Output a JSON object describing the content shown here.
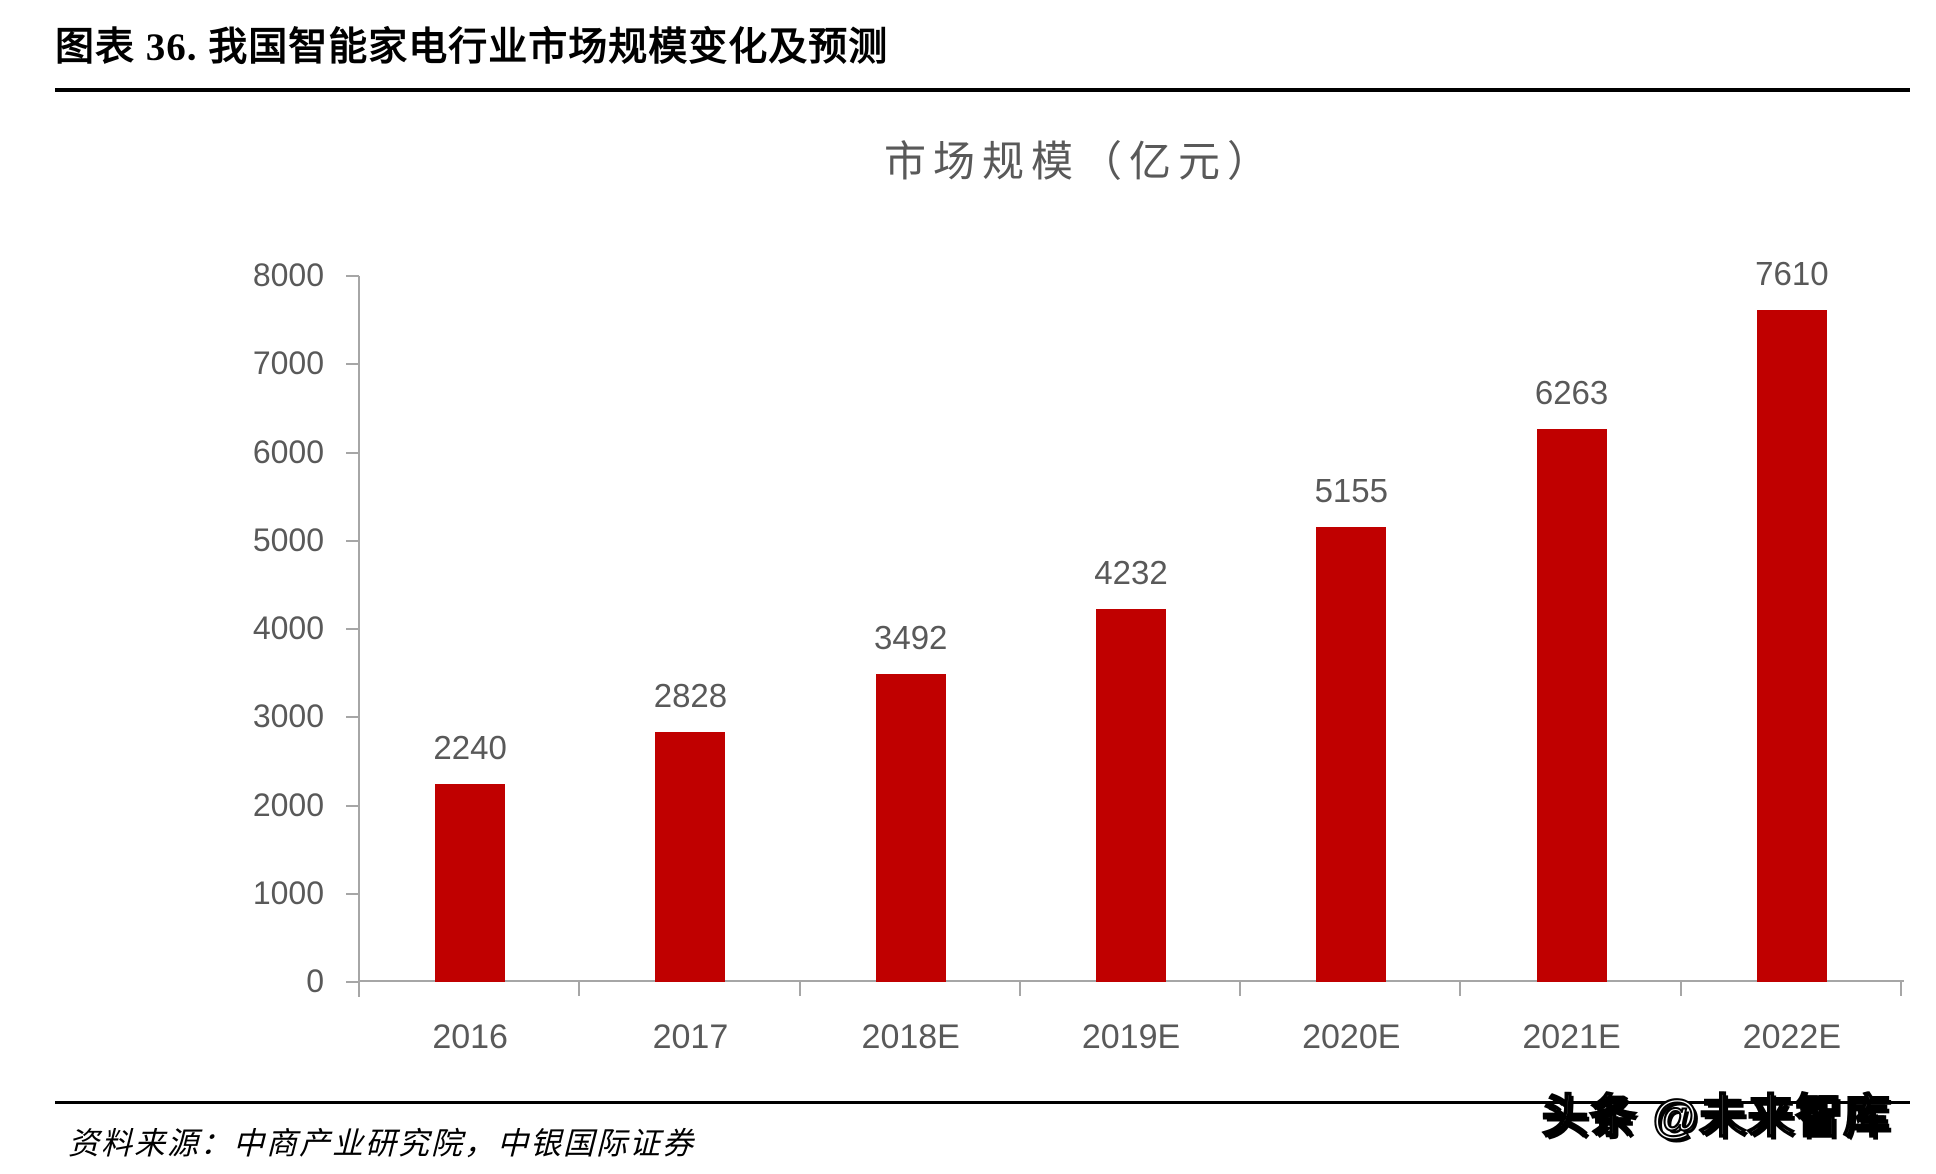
{
  "figure": {
    "title": "图表 36. 我国智能家电行业市场规模变化及预测"
  },
  "chart_data": {
    "type": "bar",
    "title": "市场规模（亿元）",
    "categories": [
      "2016",
      "2017",
      "2018E",
      "2019E",
      "2020E",
      "2021E",
      "2022E"
    ],
    "values": [
      2240,
      2828,
      3492,
      4232,
      5155,
      6263,
      7610
    ],
    "xlabel": "",
    "ylabel": "",
    "ylim": [
      0,
      8000
    ],
    "ytick_step": 1000,
    "grid": false,
    "legend": "none",
    "bar_color": "#c00000",
    "axis_color": "#a6a6a6",
    "label_color": "#595959"
  },
  "footer": {
    "source": "资料来源：中商产业研究院，中银国际证券",
    "watermark": "头条 @未来智库"
  }
}
